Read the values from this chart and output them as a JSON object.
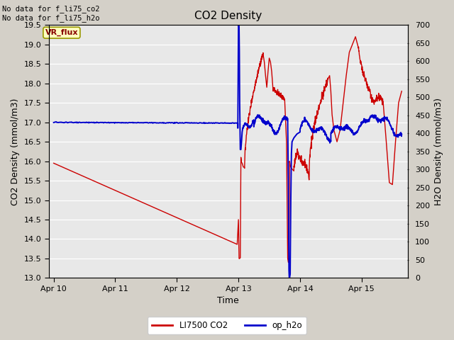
{
  "title": "CO2 Density",
  "xlabel": "Time",
  "ylabel_left": "CO2 Density (mmol/m3)",
  "ylabel_right": "H2O Density (mmol/m3)",
  "annotation_top": "No data for f_li75_co2\nNo data for f_li75_h2o",
  "vr_flux_label": "VR_flux",
  "legend_entries": [
    "LI7500 CO2",
    "op_h2o"
  ],
  "legend_colors": [
    "#cc0000",
    "#0000cc"
  ],
  "ylim_left": [
    13.0,
    19.5
  ],
  "ylim_right": [
    0,
    700
  ],
  "yticks_left": [
    13.0,
    13.5,
    14.0,
    14.5,
    15.0,
    15.5,
    16.0,
    16.5,
    17.0,
    17.5,
    18.0,
    18.5,
    19.0,
    19.5
  ],
  "yticks_right": [
    0,
    50,
    100,
    150,
    200,
    250,
    300,
    350,
    400,
    450,
    500,
    550,
    600,
    650,
    700
  ],
  "bg_color": "#d4d0c8",
  "plot_bg_color": "#e8e8e8",
  "grid_color": "#ffffff",
  "title_fontsize": 11,
  "label_fontsize": 9,
  "tick_fontsize": 8,
  "xlim": [
    -0.08,
    5.75
  ],
  "xtick_pos": [
    0,
    1,
    2,
    3,
    4,
    5
  ],
  "xtick_labels": [
    "Apr 10",
    "Apr 11",
    "Apr 12",
    "Apr 13",
    "Apr 14",
    "Apr 15"
  ]
}
